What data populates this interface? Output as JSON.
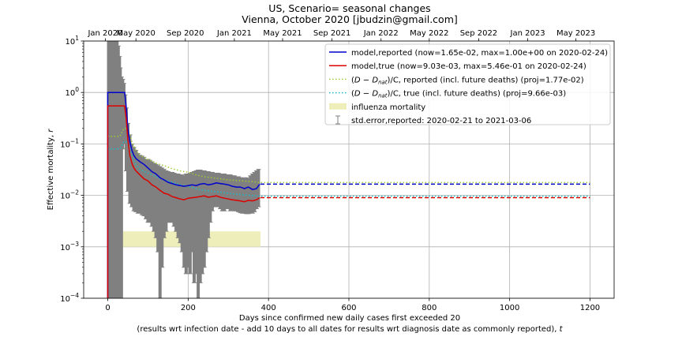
{
  "chart_data": {
    "type": "line",
    "title": "US, Scenario= seasonal changes",
    "subtitle": "Vienna, October 2020 [jbudzin@gmail.com]",
    "xlabel": "Days since confirmed new daily cases first exceeded 20",
    "xlabel2": "(results wrt infection date - add 10 days to all dates for results wrt diagnosis date as commonly reported), ",
    "xlabel2_var": "t",
    "ylabel": "Effective mortality, ",
    "ylabel_var": "r",
    "xlim": [
      -60,
      1260
    ],
    "ylim": [
      0.0001,
      10
    ],
    "yscale": "log",
    "grid": true,
    "legend_position": "top-right",
    "x_ticks": [
      0,
      200,
      400,
      600,
      800,
      1000,
      1200
    ],
    "x_tick_labels": [
      "0",
      "200",
      "400",
      "600",
      "800",
      "1000",
      "1200"
    ],
    "y_ticks": [
      0.0001,
      0.001,
      0.01,
      0.1,
      1,
      10
    ],
    "y_tick_labels": [
      {
        "base": "10",
        "exp": "-4"
      },
      {
        "base": "10",
        "exp": "-3"
      },
      {
        "base": "10",
        "exp": "-2"
      },
      {
        "base": "10",
        "exp": "-1"
      },
      {
        "base": "10",
        "exp": "0"
      },
      {
        "base": "10",
        "exp": "1"
      }
    ],
    "top_axis_ticks": [
      {
        "day": -6,
        "label": "Jan 2020"
      },
      {
        "day": 70,
        "label": "May 2020"
      },
      {
        "day": 193,
        "label": "Sep 2020"
      },
      {
        "day": 315,
        "label": "Jan 2021"
      },
      {
        "day": 435,
        "label": "May 2021"
      },
      {
        "day": 558,
        "label": "Sep 2021"
      },
      {
        "day": 680,
        "label": "Jan 2022"
      },
      {
        "day": 800,
        "label": "May 2022"
      },
      {
        "day": 923,
        "label": "Sep 2022"
      },
      {
        "day": 1045,
        "label": "Jan 2023"
      },
      {
        "day": 1165,
        "label": "May 2023"
      }
    ],
    "series": [
      {
        "name": "model,reported (now=1.65e-02, max=1.00e+00 on 2020-02-24)",
        "color": "#0000cc",
        "style": "solid",
        "x": [
          0,
          0,
          2,
          42,
          46,
          50,
          55,
          60,
          65,
          70,
          80,
          90,
          100,
          110,
          120,
          130,
          140,
          150,
          160,
          170,
          180,
          190,
          200,
          210,
          220,
          230,
          240,
          250,
          260,
          270,
          280,
          290,
          300,
          310,
          320,
          330,
          340,
          350,
          360,
          370,
          378
        ],
        "y": [
          0.0001,
          1.0,
          1.0,
          1.0,
          0.5,
          0.2,
          0.11,
          0.075,
          0.06,
          0.052,
          0.045,
          0.04,
          0.034,
          0.029,
          0.026,
          0.022,
          0.02,
          0.018,
          0.017,
          0.016,
          0.0155,
          0.015,
          0.0155,
          0.016,
          0.0155,
          0.0165,
          0.017,
          0.016,
          0.0165,
          0.0175,
          0.017,
          0.0165,
          0.016,
          0.015,
          0.0145,
          0.0145,
          0.0135,
          0.0145,
          0.013,
          0.0135,
          0.0165
        ]
      },
      {
        "name": "model,true (now=9.03e-03, max=5.46e-01 on 2020-02-24)",
        "color": "#dd0000",
        "style": "solid",
        "x": [
          0,
          0,
          2,
          42,
          46,
          50,
          55,
          60,
          65,
          70,
          80,
          90,
          100,
          110,
          120,
          130,
          140,
          150,
          160,
          170,
          180,
          190,
          200,
          210,
          220,
          230,
          240,
          250,
          260,
          270,
          280,
          290,
          300,
          310,
          320,
          330,
          340,
          350,
          360,
          370,
          378
        ],
        "y": [
          0.0001,
          0.546,
          0.546,
          0.546,
          0.3,
          0.12,
          0.06,
          0.042,
          0.034,
          0.03,
          0.025,
          0.021,
          0.019,
          0.016,
          0.0145,
          0.0125,
          0.011,
          0.0105,
          0.0095,
          0.009,
          0.0085,
          0.0082,
          0.0088,
          0.009,
          0.0092,
          0.0095,
          0.0098,
          0.0092,
          0.0095,
          0.0098,
          0.0092,
          0.0088,
          0.0085,
          0.0082,
          0.008,
          0.0078,
          0.0075,
          0.008,
          0.0078,
          0.0082,
          0.00903
        ]
      },
      {
        "name": "(D - D_nat)/C, reported (incl. future deaths) (proj=1.77e-02)",
        "color": "#9acd32",
        "style": "dotted",
        "x": [
          0,
          30,
          40,
          50,
          60,
          70,
          80,
          100,
          120,
          140,
          160,
          180,
          200,
          220,
          240,
          260,
          280,
          300,
          320,
          340,
          360,
          380,
          1200
        ],
        "y": [
          0.14,
          0.14,
          0.2,
          0.2,
          0.11,
          0.075,
          0.06,
          0.05,
          0.042,
          0.038,
          0.033,
          0.03,
          0.028,
          0.025,
          0.023,
          0.022,
          0.021,
          0.02,
          0.0195,
          0.019,
          0.0185,
          0.0177,
          0.0177
        ]
      },
      {
        "name": "(D - D_nat)/C, true (incl. future deaths) (proj=9.66e-03)",
        "color": "#17becf",
        "style": "dotted",
        "x": [
          0,
          30,
          40,
          50,
          60,
          70,
          80,
          100,
          120,
          140,
          160,
          180,
          200,
          220,
          240,
          260,
          280,
          300,
          320,
          340,
          360,
          380,
          1200
        ],
        "y": [
          0.08,
          0.08,
          0.11,
          0.11,
          0.06,
          0.04,
          0.032,
          0.027,
          0.023,
          0.02,
          0.018,
          0.016,
          0.015,
          0.0135,
          0.0125,
          0.012,
          0.0115,
          0.011,
          0.0105,
          0.0102,
          0.0099,
          0.00966,
          0.00966
        ]
      }
    ],
    "projections": [
      {
        "color": "#0000cc",
        "style": "dashed",
        "x": [
          380,
          1200
        ],
        "y": [
          0.0165,
          0.0165
        ]
      },
      {
        "color": "#dd0000",
        "style": "dashed",
        "x": [
          380,
          1200
        ],
        "y": [
          0.00903,
          0.00903
        ]
      }
    ],
    "influenza_band": {
      "name": "influenza mortality",
      "color": "#eeeebb",
      "x": [
        0,
        380
      ],
      "y": [
        0.001,
        0.002
      ]
    },
    "error_bars": {
      "name": "std.error,reported: 2020-02-21 to 2021-03-06",
      "color": "#808080",
      "x": [
        2,
        5,
        8,
        11,
        14,
        17,
        20,
        23,
        26,
        29,
        31,
        34,
        37,
        40,
        43,
        46,
        50,
        55,
        60,
        65,
        70,
        75,
        80,
        85,
        90,
        95,
        100,
        105,
        110,
        115,
        120,
        125,
        130,
        135,
        140,
        145,
        150,
        155,
        160,
        165,
        170,
        175,
        180,
        185,
        190,
        195,
        200,
        205,
        210,
        215,
        220,
        225,
        230,
        235,
        240,
        245,
        250,
        255,
        260,
        265,
        270,
        275,
        280,
        285,
        290,
        295,
        300,
        305,
        310,
        315,
        320,
        325,
        330,
        335,
        340,
        345,
        350,
        355,
        360,
        365,
        370,
        375
      ],
      "low": [
        0.0001,
        0.0001,
        0.0001,
        0.0001,
        0.0001,
        0.0001,
        0.0001,
        0.0001,
        0.0001,
        0.0001,
        0.0001,
        0.0001,
        0.08,
        0.15,
        0.1,
        0.03,
        0.012,
        0.007,
        0.006,
        0.005,
        0.0048,
        0.0045,
        0.0045,
        0.0042,
        0.004,
        0.0035,
        0.003,
        0.003,
        0.0025,
        0.002,
        0.0015,
        0.0008,
        0.0001,
        0.0004,
        0.0015,
        0.002,
        0.003,
        0.003,
        0.003,
        0.0025,
        0.002,
        0.0015,
        0.0012,
        0.0008,
        0.0004,
        0.0003,
        0.0004,
        0.0003,
        0.0008,
        0.0002,
        0.0003,
        0.0001,
        0.0002,
        0.0003,
        0.0004,
        0.0008,
        0.0015,
        0.003,
        0.005,
        0.006,
        0.006,
        0.006,
        0.0055,
        0.005,
        0.005,
        0.0055,
        0.0055,
        0.005,
        0.0052,
        0.005,
        0.005,
        0.0048,
        0.0046,
        0.0045,
        0.0045,
        0.0044,
        0.0044,
        0.0046,
        0.0045,
        0.0048,
        0.0055,
        0.006
      ],
      "high": [
        10,
        10,
        10,
        10,
        10,
        10,
        10,
        10,
        8,
        5,
        3,
        2,
        1.8,
        1.5,
        0.9,
        0.5,
        0.25,
        0.15,
        0.1,
        0.085,
        0.075,
        0.065,
        0.06,
        0.058,
        0.055,
        0.05,
        0.05,
        0.048,
        0.045,
        0.042,
        0.04,
        0.038,
        0.036,
        0.034,
        0.032,
        0.03,
        0.029,
        0.028,
        0.028,
        0.027,
        0.026,
        0.026,
        0.025,
        0.025,
        0.024,
        0.026,
        0.026,
        0.027,
        0.028,
        0.029,
        0.03,
        0.031,
        0.031,
        0.03,
        0.03,
        0.029,
        0.029,
        0.028,
        0.028,
        0.027,
        0.027,
        0.027,
        0.026,
        0.026,
        0.026,
        0.025,
        0.025,
        0.025,
        0.024,
        0.024,
        0.023,
        0.023,
        0.022,
        0.022,
        0.021,
        0.022,
        0.021,
        0.024,
        0.026,
        0.028,
        0.03,
        0.032
      ]
    },
    "legend": [
      {
        "kind": "line",
        "color": "#0000cc",
        "dash": "",
        "text": "model,reported (now=1.65e-02, max=1.00e+00 on 2020-02-24)"
      },
      {
        "kind": "line",
        "color": "#dd0000",
        "dash": "",
        "text": "model,true (now=9.03e-03, max=5.46e-01 on 2020-02-24)"
      },
      {
        "kind": "line",
        "color": "#9acd32",
        "dash": "1.5,2.5",
        "math": true,
        "tail": "/C, reported (incl. future deaths) (proj=1.77e-02)"
      },
      {
        "kind": "line",
        "color": "#17becf",
        "dash": "1.5,2.5",
        "math": true,
        "tail": "/C, true (incl. future deaths) (proj=9.66e-03)"
      },
      {
        "kind": "patch",
        "color": "#eeeebb",
        "text": "influenza mortality"
      },
      {
        "kind": "errorbar",
        "color": "#808080",
        "text": "std.error,reported: 2020-02-21 to 2021-03-06"
      }
    ]
  }
}
